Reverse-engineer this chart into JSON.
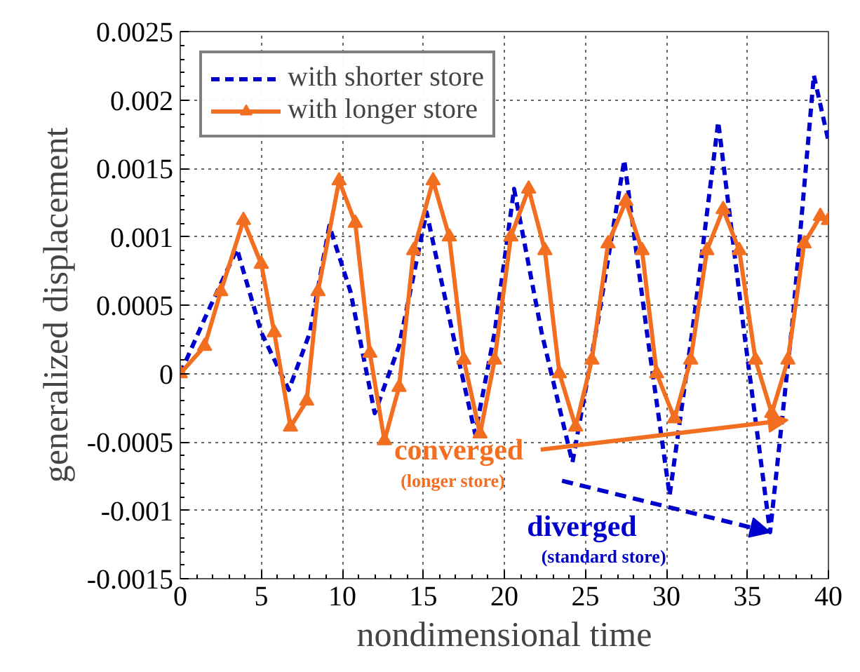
{
  "chart_data": {
    "type": "line",
    "xlabel": "nondimensional time",
    "ylabel": "generalized displacement",
    "xlim": [
      0,
      40
    ],
    "ylim": [
      -0.0015,
      0.0025
    ],
    "xticks": [
      0,
      5,
      10,
      15,
      20,
      25,
      30,
      35,
      40
    ],
    "yticks": [
      -0.0015,
      -0.001,
      -0.0005,
      0,
      0.0005,
      0.001,
      0.0015,
      0.002,
      0.0025
    ],
    "grid": true,
    "legend": "top left",
    "series": [
      {
        "name": "with shorter store",
        "color": "#0000cc",
        "line_style": "dashed",
        "marker": "none",
        "x": [
          0,
          1.5,
          3.5,
          5,
          6.7,
          8,
          9.2,
          10.5,
          12,
          13.5,
          15.2,
          16.8,
          18.2,
          19.4,
          20.6,
          22.3,
          24.2,
          25.8,
          27.4,
          28.8,
          30.2,
          31.7,
          33.2,
          34.8,
          36.4,
          37.8,
          39.1,
          40
        ],
        "values": [
          0,
          0.0004,
          0.00091,
          0.0003,
          -0.00012,
          0.0003,
          0.00108,
          0.0006,
          -0.00029,
          0.0002,
          0.00118,
          0.0003,
          -0.00044,
          0.0003,
          0.00135,
          0.0003,
          -0.00065,
          0.0004,
          0.00156,
          0.0003,
          -0.00089,
          0.0004,
          0.00184,
          0.0003,
          -0.00116,
          0.0004,
          0.00218,
          0.0017
        ]
      },
      {
        "name": "with longer store",
        "color": "#f26f21",
        "line_style": "solid",
        "marker": "triangle",
        "x": [
          0,
          1.5,
          2.5,
          3.9,
          5,
          5.8,
          6.8,
          7.8,
          8.5,
          9.8,
          10.8,
          11.7,
          12.6,
          13.5,
          14.4,
          15.6,
          16.6,
          17.5,
          18.5,
          19.4,
          20.4,
          21.5,
          22.5,
          23.4,
          24.4,
          25.4,
          26.4,
          27.5,
          28.5,
          29.4,
          30.5,
          31.5,
          32.5,
          33.5,
          34.5,
          35.5,
          36.5,
          37.5,
          38.5,
          39.5,
          40
        ],
        "values": [
          0,
          0.0002,
          0.0006,
          0.00112,
          0.0008,
          0.0003,
          -0.00039,
          -0.0002,
          0.0006,
          0.00141,
          0.0011,
          0.00015,
          -0.00049,
          -0.0001,
          0.0009,
          0.00141,
          0.001,
          0.0001,
          -0.00044,
          0.0001,
          0.001,
          0.00135,
          0.0009,
          0,
          -0.00039,
          0.0001,
          0.00095,
          0.00126,
          0.0009,
          0,
          -0.00033,
          0.0001,
          0.0009,
          0.0012,
          0.0009,
          0.0001,
          -0.00029,
          0.0001,
          0.00095,
          0.00115,
          0.00112
        ]
      }
    ],
    "annotations": [
      {
        "text": "converged",
        "x": 37.5,
        "y": -0.00034
      },
      "(longer store)",
      {
        "text": "diverged",
        "x": 36.4,
        "y": -0.00116
      },
      "(standard store)"
    ]
  }
}
